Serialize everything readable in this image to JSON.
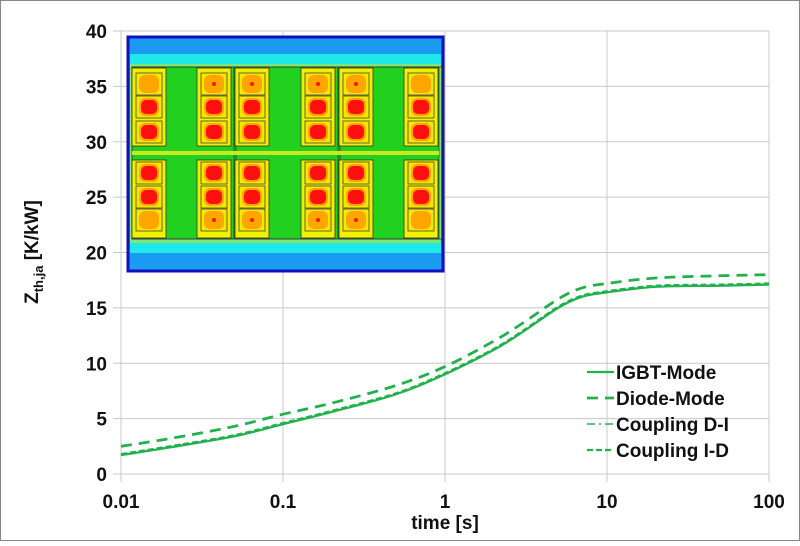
{
  "chart_data": {
    "type": "line",
    "title": "",
    "xlabel": "time [s]",
    "ylabel": {
      "main": "Z",
      "subscript": "th,ja",
      "unit": " [K/kW]"
    },
    "xscale": "log",
    "xlim": [
      0.01,
      100
    ],
    "ylim": [
      0,
      40
    ],
    "xticks": [
      "0.01",
      "0.1",
      "1",
      "10",
      "100"
    ],
    "xtick_values": [
      0.01,
      0.1,
      1,
      10,
      100
    ],
    "yticks": [
      "0",
      "5",
      "10",
      "15",
      "20",
      "25",
      "30",
      "35",
      "40"
    ],
    "ytick_values": [
      0,
      5,
      10,
      15,
      20,
      25,
      30,
      35,
      40
    ],
    "grid": true,
    "legend_position": "bottom-right",
    "color": "#22b14c",
    "inset": "thermal simulation map of module (top-left)",
    "series": [
      {
        "name": "IGBT-Mode",
        "style": "solid",
        "x": [
          0.01,
          0.02,
          0.05,
          0.1,
          0.2,
          0.5,
          1,
          2,
          3,
          5,
          7,
          10,
          20,
          50,
          100
        ],
        "y": [
          1.7,
          2.4,
          3.4,
          4.5,
          5.6,
          7.2,
          9.0,
          11.2,
          12.8,
          15.0,
          16.0,
          16.4,
          16.9,
          17.0,
          17.1
        ]
      },
      {
        "name": "Diode-Mode",
        "style": "dash",
        "x": [
          0.01,
          0.02,
          0.05,
          0.1,
          0.2,
          0.5,
          1,
          2,
          3,
          5,
          7,
          10,
          20,
          50,
          100
        ],
        "y": [
          2.5,
          3.2,
          4.3,
          5.4,
          6.4,
          8.0,
          9.7,
          12.0,
          13.6,
          15.8,
          16.8,
          17.2,
          17.7,
          17.9,
          18.0
        ]
      },
      {
        "name": "Coupling D-I",
        "style": "dashdot",
        "x": [
          0.01,
          0.02,
          0.05,
          0.1,
          0.2,
          0.5,
          1,
          2,
          3,
          5,
          7,
          10,
          20,
          50,
          100
        ],
        "y": [
          1.75,
          2.45,
          3.45,
          4.55,
          5.65,
          7.25,
          9.05,
          11.25,
          12.85,
          15.05,
          16.05,
          16.45,
          16.95,
          17.05,
          17.15
        ]
      },
      {
        "name": "Coupling I-D",
        "style": "shortdash",
        "x": [
          0.01,
          0.02,
          0.05,
          0.1,
          0.2,
          0.5,
          1,
          2,
          3,
          5,
          7,
          10,
          20,
          50,
          100
        ],
        "y": [
          1.8,
          2.5,
          3.5,
          4.6,
          5.7,
          7.3,
          9.1,
          11.3,
          12.9,
          15.1,
          16.1,
          16.5,
          17.0,
          17.1,
          17.2
        ]
      }
    ]
  }
}
